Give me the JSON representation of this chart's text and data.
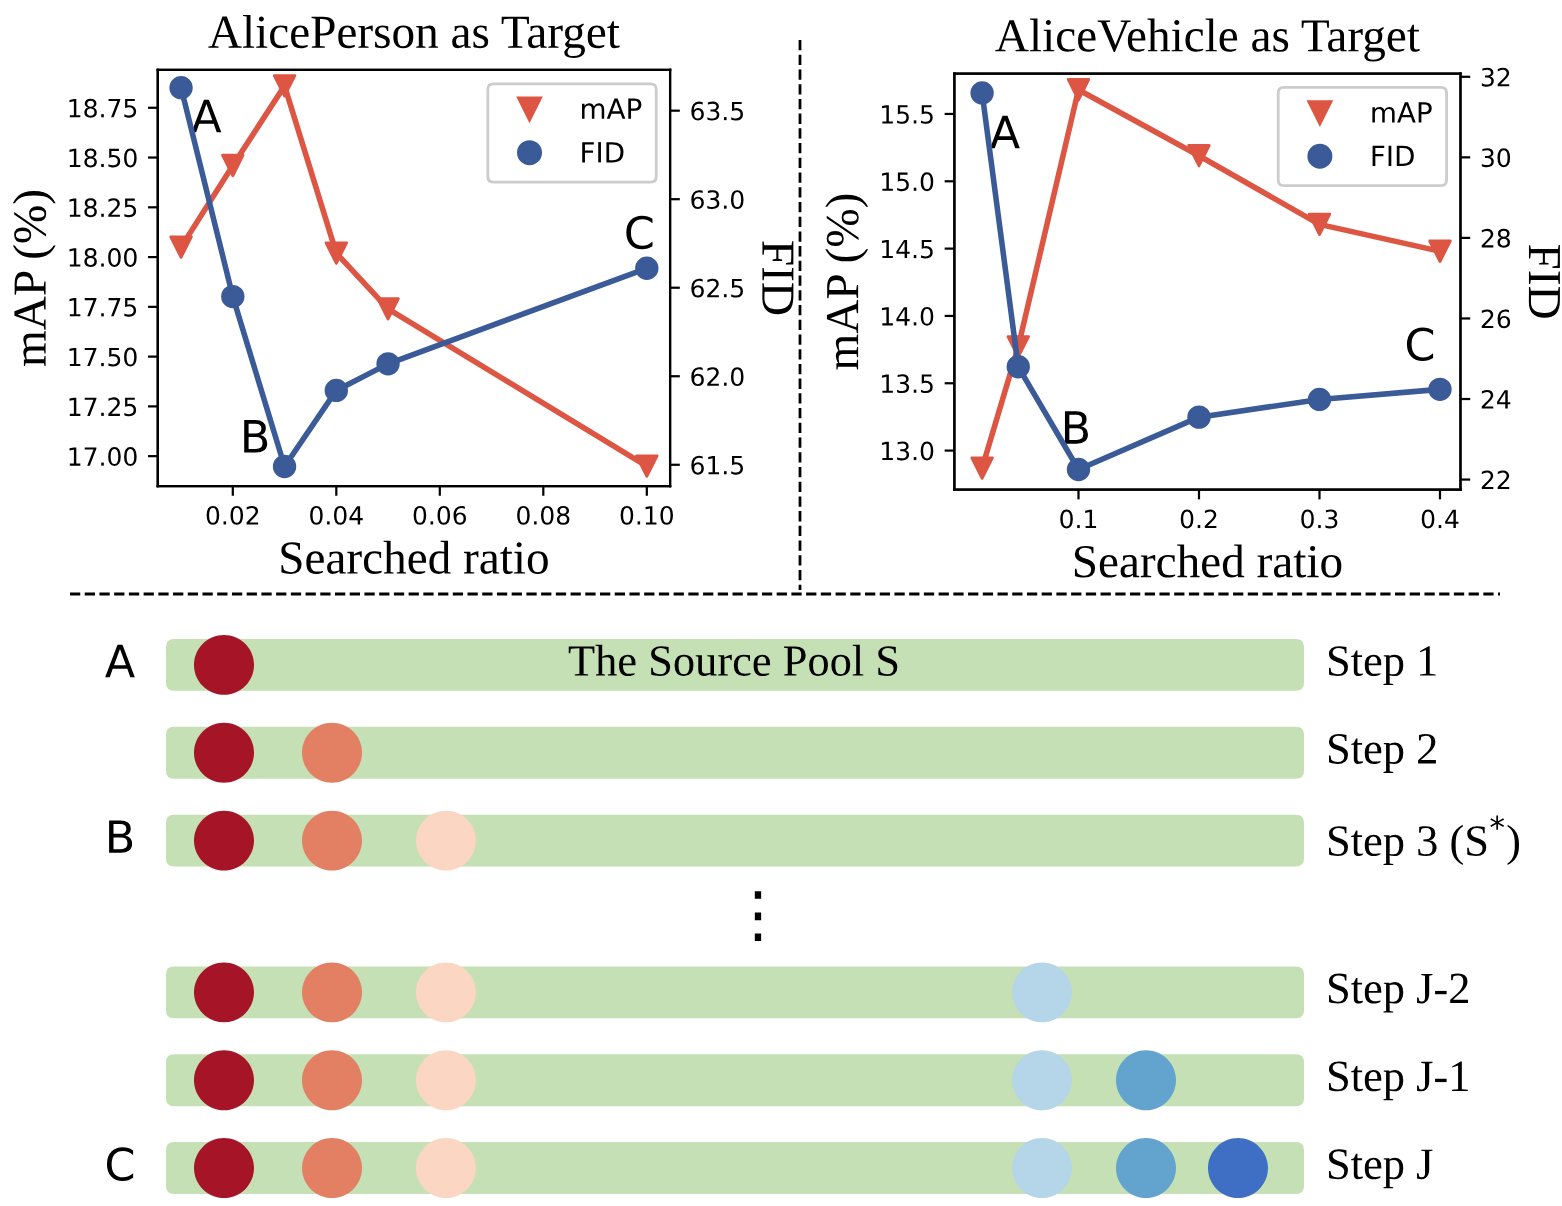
{
  "chart_data": [
    {
      "type": "line",
      "title": "AlicePerson as Target",
      "xlabel": "Searched ratio",
      "ylabel": "mAP (%)",
      "y2label": "FID",
      "x": [
        0.01,
        0.02,
        0.03,
        0.04,
        0.05,
        0.1
      ],
      "series": [
        {
          "name": "mAP",
          "color": "#dd5543",
          "marker": "triangle",
          "values": [
            18.05,
            18.46,
            18.86,
            18.02,
            17.74,
            16.95
          ]
        },
        {
          "name": "FID",
          "color": "#3a5a98",
          "marker": "circle",
          "axis": "y2",
          "values": [
            63.63,
            62.45,
            61.49,
            61.92,
            62.07,
            62.61
          ]
        }
      ],
      "xlim": [
        0.0055,
        0.1045
      ],
      "xticks": [
        0.02,
        0.04,
        0.06,
        0.08,
        {
          "value": 0.1,
          "label": "0.10"
        }
      ],
      "ylim": [
        16.85,
        18.94
      ],
      "yticks": [
        {
          "value": 17,
          "label": "17.00"
        },
        17.25,
        {
          "value": 17.5,
          "label": "17.50"
        },
        17.75,
        {
          "value": 18,
          "label": "18.00"
        },
        18.25,
        {
          "value": 18.5,
          "label": "18.50"
        },
        18.75
      ],
      "y2lim": [
        61.38,
        63.73
      ],
      "y2ticks": [
        61.5,
        {
          "value": 62,
          "label": "62.0"
        },
        62.5,
        {
          "value": 63,
          "label": "63.0"
        },
        63.5
      ],
      "legend": "top right",
      "grid": false,
      "annotations": [
        "A",
        "B",
        "C"
      ]
    },
    {
      "type": "line",
      "title": "AliceVehicle as Target",
      "xlabel": "Searched ratio",
      "ylabel": "mAP (%)",
      "y2label": "FID",
      "x": [
        0.02,
        0.05,
        0.1,
        0.2,
        0.3,
        0.4
      ],
      "series": [
        {
          "name": "mAP",
          "color": "#dd5543",
          "marker": "triangle",
          "values": [
            12.87,
            13.77,
            15.68,
            15.19,
            14.68,
            14.48
          ]
        },
        {
          "name": "FID",
          "color": "#3a5a98",
          "marker": "circle",
          "axis": "y2",
          "values": [
            31.6,
            24.8,
            22.25,
            23.55,
            23.99,
            24.24
          ]
        }
      ],
      "xlim": [
        -0.003,
        0.417
      ],
      "xticks": [
        0.1,
        0.2,
        0.3,
        0.4
      ],
      "ylim": [
        12.71,
        15.8
      ],
      "yticks": [
        {
          "value": 13,
          "label": "13.0"
        },
        13.5,
        {
          "value": 14,
          "label": "14.0"
        },
        14.5,
        {
          "value": 15,
          "label": "15.0"
        },
        15.5
      ],
      "y2lim": [
        21.75,
        32.08
      ],
      "y2ticks": [
        22,
        24,
        26,
        28,
        30,
        32
      ],
      "legend": "top right",
      "grid": false,
      "annotations": [
        "A",
        "B",
        "C"
      ]
    },
    {
      "type": "other",
      "annotations": [
        "The Source Pool S",
        "A",
        "B",
        "C",
        "Step 1",
        "Step 2",
        "Step 3 (S$^{*}$)",
        "Step J-2",
        "Step J-1",
        "Step J",
        "⋮"
      ]
    }
  ]
}
